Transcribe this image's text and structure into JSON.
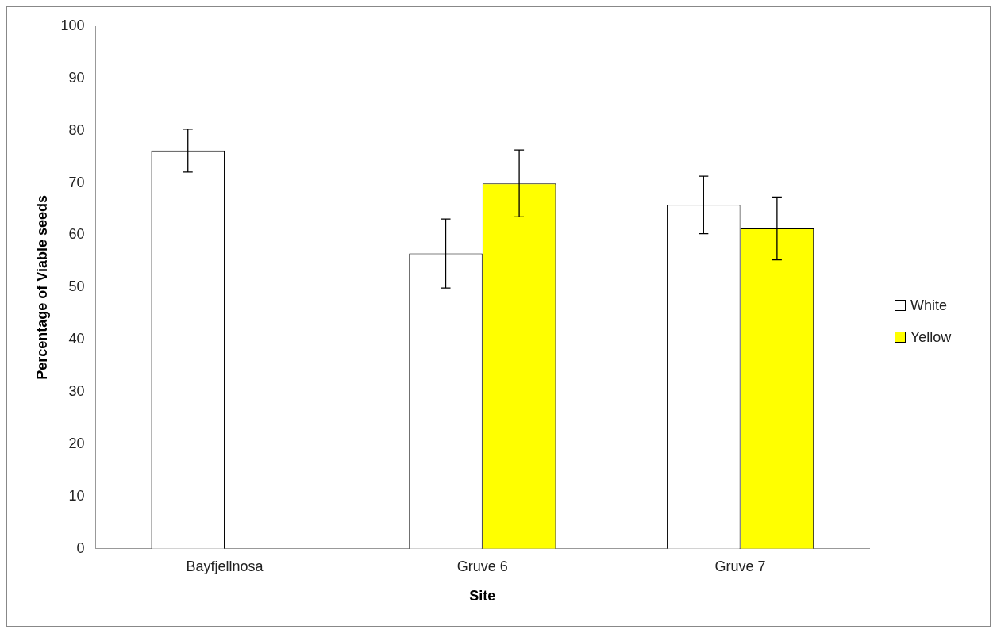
{
  "chart_data": {
    "type": "bar",
    "xlabel": "Site",
    "ylabel": "Percentage of Viable seeds",
    "categories": [
      "Bayfjellnosa",
      "Gruve 6",
      "Gruve 7"
    ],
    "series": [
      {
        "name": "White",
        "color": "#ffffff",
        "values": [
          76.2,
          56.5,
          65.8
        ],
        "errors": [
          4.1,
          6.6,
          5.5
        ]
      },
      {
        "name": "Yellow",
        "color": "#ffff00",
        "values": [
          null,
          69.9,
          61.3
        ],
        "errors": [
          null,
          6.4,
          6.0
        ]
      }
    ],
    "ylim": [
      0,
      100
    ],
    "yticks": [
      0,
      10,
      20,
      30,
      40,
      50,
      60,
      70,
      80,
      90,
      100
    ],
    "grid": false,
    "legend": "right"
  }
}
